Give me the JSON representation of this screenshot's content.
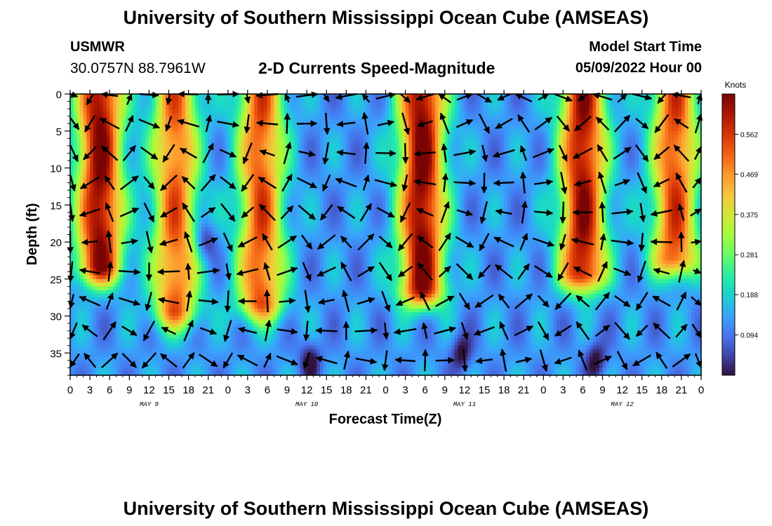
{
  "header": {
    "title": "University of Southern Mississippi Ocean Cube (AMSEAS)",
    "station_name": "USMWR",
    "station_coords": "30.0757N  88.7961W",
    "plot_title": "2-D Currents Speed-Magnitude",
    "model_start_label": "Model Start Time",
    "model_start_value": "05/09/2022 Hour 00"
  },
  "footer": {
    "title": "University of Southern Mississippi Ocean Cube (AMSEAS)"
  },
  "chart_data": {
    "type": "heatmap",
    "title": "2-D Currents Speed-Magnitude",
    "xlabel": "Forecast Time(Z)",
    "ylabel": "Depth (ft)",
    "x_ticks": [
      0,
      3,
      6,
      9,
      12,
      15,
      18,
      21,
      24,
      27,
      30,
      33,
      36,
      39,
      42,
      45,
      48,
      51,
      54,
      57,
      60,
      63,
      66,
      69,
      72,
      75,
      78,
      81,
      84,
      87,
      90,
      93,
      96
    ],
    "x_tick_labels": [
      "0",
      "3",
      "6",
      "9",
      "12",
      "15",
      "18",
      "21",
      "0",
      "3",
      "6",
      "9",
      "12",
      "15",
      "18",
      "21",
      "0",
      "3",
      "6",
      "9",
      "12",
      "15",
      "18",
      "21",
      "0",
      "3",
      "6",
      "9",
      "12",
      "15",
      "18",
      "21",
      "0"
    ],
    "day_labels": [
      {
        "hour": 12,
        "text": "MAY 9"
      },
      {
        "hour": 36,
        "text": "MAY 10"
      },
      {
        "hour": 60,
        "text": "MAY 11"
      },
      {
        "hour": 84,
        "text": "MAY 12"
      }
    ],
    "xlim": [
      0,
      96
    ],
    "y_ticks": [
      0,
      5,
      10,
      15,
      20,
      25,
      30,
      35
    ],
    "y_tick_labels": [
      "0",
      "5",
      "10",
      "15",
      "20",
      "25",
      "30",
      "35"
    ],
    "ylim": [
      0,
      38
    ],
    "y_inverted": true,
    "colorbar": {
      "label": "Knots",
      "ticks": [
        0.094,
        0.188,
        0.281,
        0.375,
        0.469,
        0.562
      ],
      "tick_labels": [
        "0.094",
        "0.188",
        "0.281",
        "0.375",
        "0.469",
        "0.562"
      ],
      "range": [
        0.0,
        0.656
      ]
    },
    "speed_peaks": [
      {
        "hour": 4.5,
        "speed": 0.65,
        "depth_extent": 23
      },
      {
        "hour": 16.0,
        "speed": 0.52,
        "depth_extent": 29
      },
      {
        "hour": 29.0,
        "speed": 0.54,
        "depth_extent": 28
      },
      {
        "hour": 53.5,
        "speed": 0.66,
        "depth_extent": 26
      },
      {
        "hour": 78.0,
        "speed": 0.63,
        "depth_extent": 24
      },
      {
        "hour": 92.0,
        "speed": 0.55,
        "depth_extent": 22
      }
    ],
    "speed_minima": [
      {
        "hour": 20.5,
        "depth": 20,
        "speed": 0.02
      },
      {
        "hour": 36.5,
        "depth": 36,
        "speed": 0.02
      },
      {
        "hour": 59.5,
        "depth": 35,
        "speed": 0.03
      },
      {
        "hour": 80.0,
        "depth": 36,
        "speed": 0.02
      }
    ],
    "vector_hours": [
      0,
      3,
      6,
      9,
      12,
      15,
      18,
      21,
      24,
      27,
      30,
      33,
      36,
      39,
      42,
      45,
      48,
      51,
      54,
      57,
      60,
      63,
      66,
      69,
      72,
      75,
      78,
      81,
      84,
      87,
      90,
      93,
      96
    ],
    "vector_depths": [
      0,
      4,
      8,
      12,
      16,
      20,
      24,
      28,
      32,
      36
    ]
  }
}
